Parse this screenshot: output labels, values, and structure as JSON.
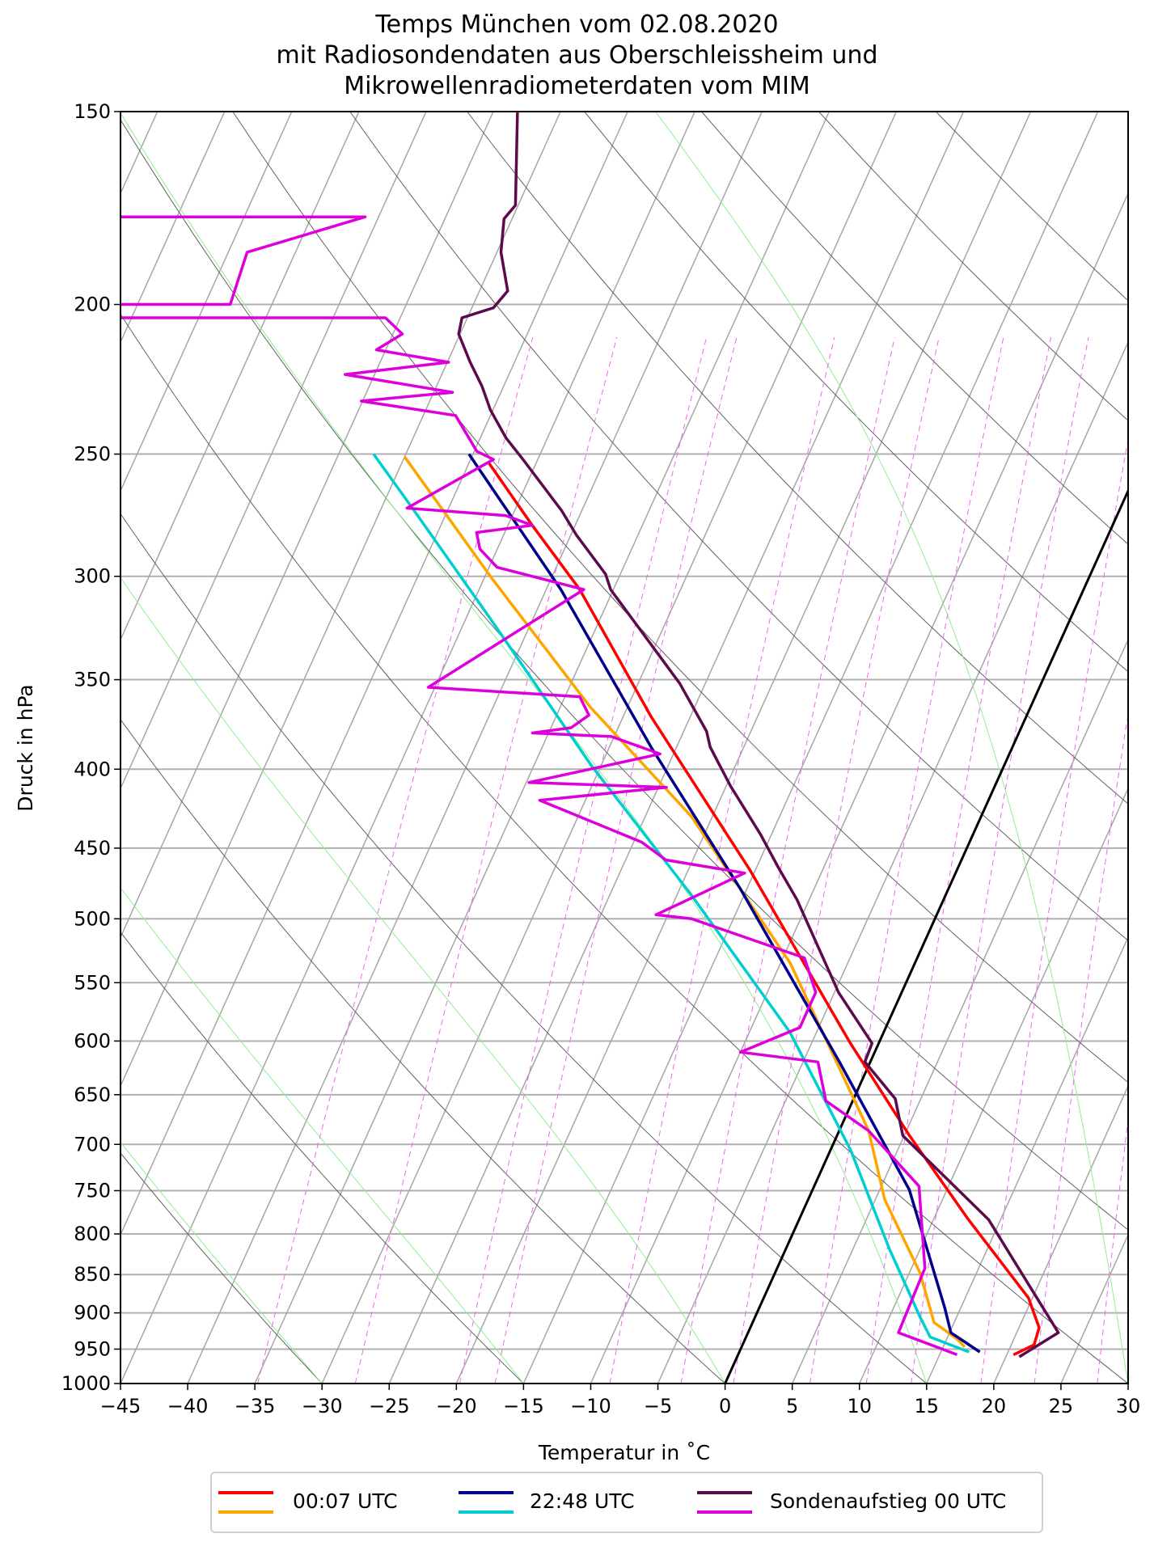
{
  "title": [
    "Temps München vom 02.08.2020",
    "mit Radiosondendaten aus Oberschleissheim und",
    "Mikrowellenradiometerdaten vom MIM"
  ],
  "chart_data": {
    "type": "line",
    "subtype": "skew-t log-p diagram",
    "title": "Temps München vom 02.08.2020 mit Radiosondendaten aus Oberschleissheim und Mikrowellenradiometerdaten vom MIM",
    "xlabel": "Temperatur in $^\\circ$C",
    "xlabel_display": "Temperatur in ˚C",
    "ylabel": "Druck in hPa",
    "xlim": [
      -45,
      30
    ],
    "ylim": [
      1000,
      150
    ],
    "yscale": "log",
    "xticks": [
      -45,
      -40,
      -35,
      -30,
      -25,
      -20,
      -15,
      -10,
      -5,
      0,
      5,
      10,
      15,
      20,
      25,
      30
    ],
    "xtick_labels": [
      "−45",
      "−40",
      "−35",
      "−30",
      "−25",
      "−20",
      "−15",
      "−10",
      "−5",
      "0",
      "5",
      "10",
      "15",
      "20",
      "25",
      "30"
    ],
    "yticks": [
      150,
      200,
      250,
      300,
      350,
      400,
      450,
      500,
      550,
      600,
      650,
      700,
      750,
      800,
      850,
      900,
      950,
      1000
    ],
    "grid": true,
    "legend_placement": "bottom-center (below axes)",
    "legend": [
      {
        "label": "00:07 UTC",
        "colors": [
          "#ff0000",
          "#ffa500"
        ]
      },
      {
        "label": "22:48 UTC",
        "colors": [
          "#00008b",
          "#00ced1"
        ]
      },
      {
        "label": "Sondenaufstieg 00 UTC",
        "colors": [
          "#5c0a4c",
          "#dd00dd"
        ]
      }
    ],
    "background_lines": {
      "isotherms_color": "#a6a6a6",
      "zero_isotherm_color": "#000000",
      "dry_adiabats_color": "#606060",
      "moist_adiabats_color": "#90ee90",
      "mixing_ratio_color": "#ee66ee"
    },
    "series": [
      {
        "id": "radiometer_0007_t",
        "legend": "00:07 UTC",
        "color": "#ff0000",
        "p": [
          253,
          278,
          306,
          370,
          465,
          601,
          691,
          783,
          880,
          920,
          944,
          958
        ],
        "t": [
          -48.6,
          -43.2,
          -37.5,
          -27.9,
          -15.4,
          -2.2,
          5.4,
          12.6,
          19.7,
          21.5,
          21.7,
          20.5
        ]
      },
      {
        "id": "radiometer_0007_td",
        "legend": "00:07 UTC",
        "color": "#ffa500",
        "p": [
          251,
          301,
          365,
          429,
          534,
          686,
          760,
          848,
          913,
          936,
          947
        ],
        "t": [
          -55.0,
          -44.4,
          -32.7,
          -21.6,
          -9.3,
          2.2,
          5.7,
          10.8,
          13.5,
          15.8,
          16.6
        ]
      },
      {
        "id": "radiometer_2248_t",
        "legend": "22:48 UTC",
        "color": "#00008b",
        "p": [
          250,
          306,
          387,
          478,
          619,
          749,
          893,
          927,
          954
        ],
        "t": [
          -50.3,
          -38.9,
          -26.9,
          -15.5,
          -2.3,
          7.2,
          13.8,
          15.1,
          17.9
        ]
      },
      {
        "id": "radiometer_2248_td",
        "legend": "22:48 UTC",
        "color": "#00ced1",
        "p": [
          250,
          271,
          320,
          398,
          482,
          592,
          706,
          818,
          906,
          933,
          954
        ],
        "t": [
          -57.4,
          -52.7,
          -43.1,
          -30.7,
          -19.0,
          -7.0,
          1.5,
          7.7,
          12.3,
          13.7,
          17.1
        ]
      },
      {
        "id": "sounding_t",
        "legend": "Sondenaufstieg 00 UTC",
        "color": "#5c0a4c",
        "p": [
          150,
          172.5,
          176,
          185,
          196,
          201,
          204,
          209,
          218,
          226,
          234,
          244,
          252,
          272,
          282,
          299,
          306,
          352,
          378,
          387,
          410,
          441,
          463,
          486,
          497,
          558,
          602,
          619,
          654,
          691,
          783,
          927,
          961
        ],
        "t": [
          -58.2,
          -55.2,
          -55.6,
          -54.7,
          -52.9,
          -53.4,
          -55.4,
          -55.1,
          -53.3,
          -51.6,
          -50.2,
          -48.1,
          -46.1,
          -41.5,
          -39.6,
          -36.1,
          -35.2,
          -26.9,
          -23.3,
          -22.5,
          -19.7,
          -15.8,
          -13.4,
          -10.9,
          -9.9,
          -4.7,
          -0.5,
          -0.4,
          3.1,
          4.9,
          14.1,
          23.1,
          21.0
        ]
      },
      {
        "id": "sounding_td",
        "legend": "Sondenaufstieg 00 UTC",
        "color": "#dd00dd",
        "p": [
          175.5,
          175.5,
          185,
          200,
          200,
          204,
          204,
          209,
          214,
          218,
          222,
          228,
          231,
          236,
          249,
          252,
          271,
          274,
          278,
          281,
          288,
          296,
          306,
          354,
          359,
          369,
          376,
          379,
          381,
          391,
          408,
          411,
          419,
          446,
          458,
          467,
          497,
          500,
          530,
          558,
          588,
          610,
          619,
          656,
          686,
          745,
          842,
          927,
          958
        ],
        "t": [
          -84.5,
          -66.0,
          -73.6,
          -73.1,
          -81.5,
          -81.0,
          -61.1,
          -59.3,
          -60.7,
          -54.9,
          -62.2,
          -53.6,
          -60.1,
          -52.6,
          -49.8,
          -48.3,
          -53.1,
          -45.5,
          -43.2,
          -47.1,
          -46.3,
          -44.4,
          -37.2,
          -45.5,
          -33.9,
          -32.6,
          -33.5,
          -36.2,
          -30.2,
          -26.0,
          -34.8,
          -24.4,
          -33.4,
          -24.4,
          -22.0,
          -15.7,
          -20.9,
          -18.1,
          -8.4,
          -6.4,
          -6.4,
          -10.0,
          -3.9,
          -2.0,
          2.2,
          7.8,
          11.0,
          11.2,
          16.3
        ]
      }
    ]
  }
}
